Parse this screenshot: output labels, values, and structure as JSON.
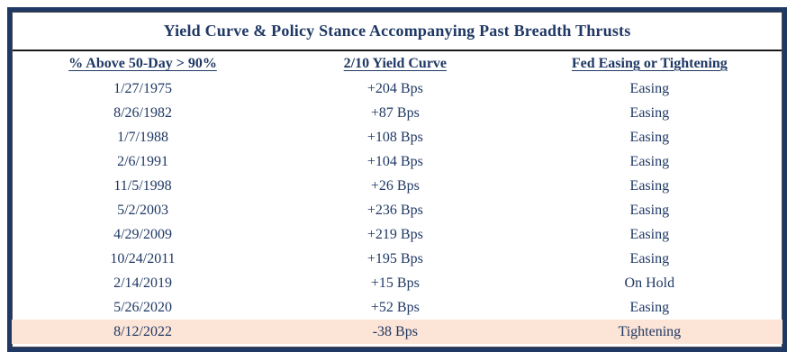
{
  "chart_data": {
    "type": "table",
    "title": "Yield Curve & Policy Stance Accompanying Past Breadth Thrusts",
    "columns": [
      "% Above 50-Day > 90%",
      "2/10 Yield Curve",
      "Fed Easing or Tightening"
    ],
    "rows": [
      [
        "1/27/1975",
        "+204 Bps",
        "Easing"
      ],
      [
        "8/26/1982",
        "+87 Bps",
        "Easing"
      ],
      [
        "1/7/1988",
        "+108 Bps",
        "Easing"
      ],
      [
        "2/6/1991",
        "+104 Bps",
        "Easing"
      ],
      [
        "11/5/1998",
        "+26 Bps",
        "Easing"
      ],
      [
        "5/2/2003",
        "+236 Bps",
        "Easing"
      ],
      [
        "4/29/2009",
        "+219 Bps",
        "Easing"
      ],
      [
        "10/24/2011",
        "+195 Bps",
        "Easing"
      ],
      [
        "2/14/2019",
        "+15 Bps",
        "On Hold"
      ],
      [
        "5/26/2020",
        "+52 Bps",
        "Easing"
      ],
      [
        "8/12/2022",
        "-38 Bps",
        "Tightening"
      ]
    ],
    "highlighted_row_index": 10,
    "highlighted_row_label": "8/12/2022"
  },
  "colors": {
    "text_navy": "#1F3864",
    "border_navy": "#1F3864",
    "highlight_peach": "#FCE4D6",
    "title_divider_black": "#1a1a1a"
  }
}
